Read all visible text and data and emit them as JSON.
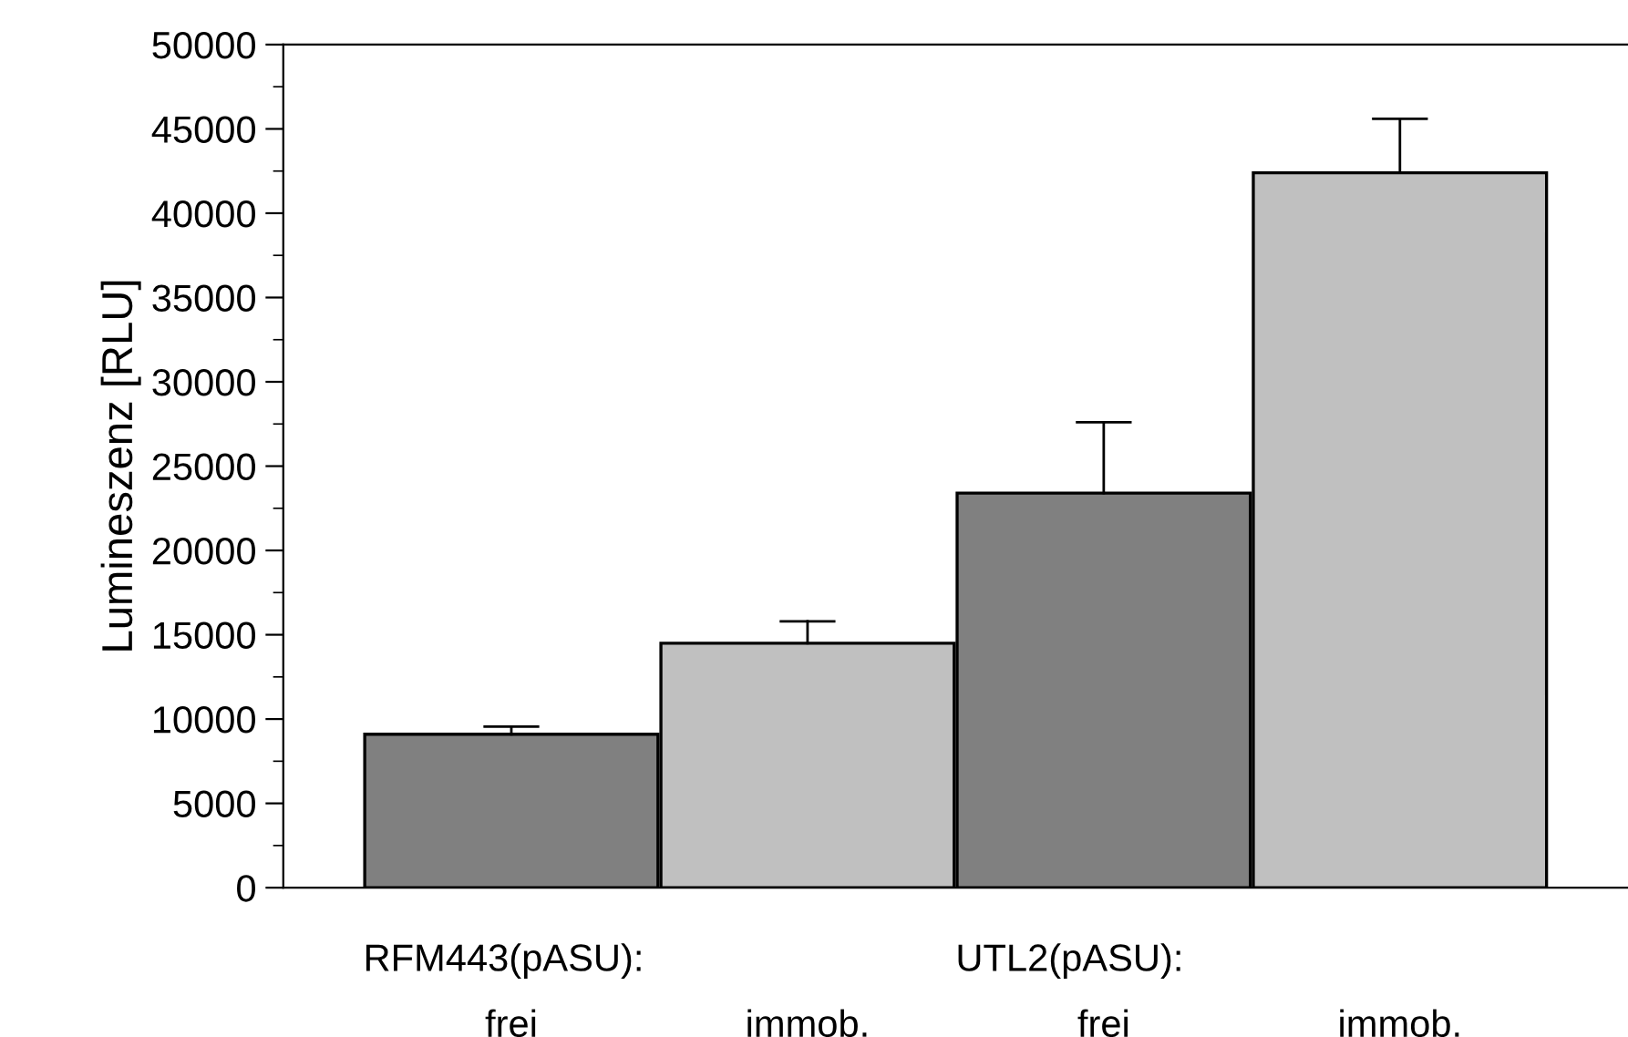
{
  "chart_data": {
    "type": "bar",
    "ylabel": "Lumineszenz [RLU]",
    "categories": [
      "frei",
      "immob.",
      "frei",
      "immob."
    ],
    "values": [
      9100,
      14500,
      23400,
      42400
    ],
    "colors": [
      "#808080",
      "#c0c0c0",
      "#808080",
      "#c0c0c0"
    ],
    "errors": [
      [
        9100,
        9550
      ],
      [
        14500,
        15800
      ],
      [
        23400,
        27600
      ],
      [
        42400,
        45600
      ]
    ],
    "annotations": [
      "RFM443(pASU):",
      "UTL2(pASU):"
    ],
    "ylim": [
      0,
      50000
    ],
    "yticks": [
      0,
      5000,
      10000,
      15000,
      20000,
      25000,
      30000,
      35000,
      40000,
      45000,
      50000
    ],
    "grid": false,
    "legend": false
  }
}
